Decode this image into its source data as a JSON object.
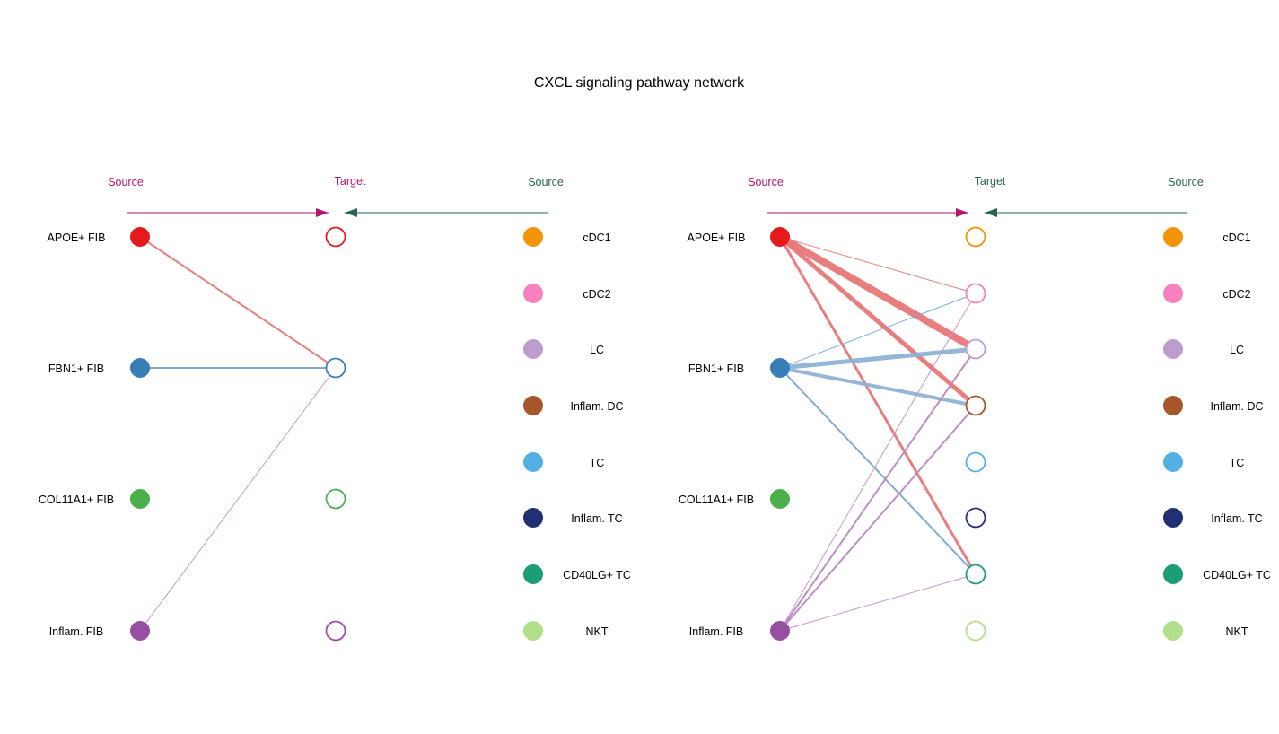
{
  "title": "CXCL signaling pathway network",
  "panels": [
    {
      "headers": [
        {
          "text": "Source",
          "color": "#b3166e"
        },
        {
          "text": "Target",
          "color": "#b3166e"
        },
        {
          "text": "Source",
          "color": "#2a6458"
        }
      ],
      "sources": [
        {
          "label": "APOE+ FIB",
          "color": "#e41a1c"
        },
        {
          "label": "FBN1+ FIB",
          "color": "#377eb8"
        },
        {
          "label": "COL11A1+ FIB",
          "color": "#4daf4a"
        },
        {
          "label": "Inflam. FIB",
          "color": "#984ea3"
        }
      ],
      "targets": [
        {
          "color": "#e41a1c"
        },
        {
          "color": "#377eb8"
        },
        {
          "color": "#4daf4a"
        },
        {
          "color": "#984ea3"
        }
      ],
      "right_nodes": [
        {
          "label": "cDC1",
          "color": "#f29403"
        },
        {
          "label": "cDC2",
          "color": "#f781bf"
        },
        {
          "label": "LC",
          "color": "#bc9dcc"
        },
        {
          "label": "Inflam. DC",
          "color": "#a65628"
        },
        {
          "label": "TC",
          "color": "#54b0e4"
        },
        {
          "label": "Inflam. TC",
          "color": "#222f75"
        },
        {
          "label": "CD40LG+ TC",
          "color": "#1b9e77"
        },
        {
          "label": "NKT",
          "color": "#b2df8a"
        }
      ],
      "edges": [
        {
          "from": 0,
          "to": 1,
          "weight": 2,
          "color": "#e87878"
        },
        {
          "from": 1,
          "to": 1,
          "weight": 2,
          "color": "#7aa7cf"
        },
        {
          "from": 3,
          "to": 1,
          "weight": 1,
          "color": "#c390c9"
        }
      ]
    },
    {
      "headers": [
        {
          "text": "Source",
          "color": "#b3166e"
        },
        {
          "text": "Target",
          "color": "#2a6458"
        },
        {
          "text": "Source",
          "color": "#2a6458"
        }
      ],
      "sources": [
        {
          "label": "APOE+ FIB",
          "color": "#e41a1c"
        },
        {
          "label": "FBN1+ FIB",
          "color": "#377eb8"
        },
        {
          "label": "COL11A1+ FIB",
          "color": "#4daf4a"
        },
        {
          "label": "Inflam. FIB",
          "color": "#984ea3"
        }
      ],
      "targets": [
        {
          "color": "#f29403"
        },
        {
          "color": "#f781bf"
        },
        {
          "color": "#bc9dcc"
        },
        {
          "color": "#a65628"
        },
        {
          "color": "#54b0e4"
        },
        {
          "color": "#222f75"
        },
        {
          "color": "#1b9e77"
        },
        {
          "color": "#b2df8a"
        }
      ],
      "right_nodes": [
        {
          "label": "cDC1",
          "color": "#f29403"
        },
        {
          "label": "cDC2",
          "color": "#f781bf"
        },
        {
          "label": "LC",
          "color": "#bc9dcc"
        },
        {
          "label": "Inflam. DC",
          "color": "#a65628"
        },
        {
          "label": "TC",
          "color": "#54b0e4"
        },
        {
          "label": "Inflam. TC",
          "color": "#222f75"
        },
        {
          "label": "CD40LG+ TC",
          "color": "#1b9e77"
        },
        {
          "label": "NKT",
          "color": "#b2df8a"
        }
      ],
      "edges": [
        {
          "from": 0,
          "to": 1,
          "weight": 1,
          "color": "#e87878"
        },
        {
          "from": 0,
          "to": 2,
          "weight": 8,
          "color": "#e87878"
        },
        {
          "from": 0,
          "to": 3,
          "weight": 5,
          "color": "#e87878"
        },
        {
          "from": 0,
          "to": 6,
          "weight": 3,
          "color": "#e87878"
        },
        {
          "from": 1,
          "to": 1,
          "weight": 1,
          "color": "#7aa7cf"
        },
        {
          "from": 1,
          "to": 2,
          "weight": 5,
          "color": "#8fb3d6"
        },
        {
          "from": 1,
          "to": 3,
          "weight": 4,
          "color": "#8fb3d6"
        },
        {
          "from": 1,
          "to": 6,
          "weight": 2,
          "color": "#7aa7cf"
        },
        {
          "from": 3,
          "to": 1,
          "weight": 1,
          "color": "#c390c9"
        },
        {
          "from": 3,
          "to": 2,
          "weight": 2,
          "color": "#b889c1"
        },
        {
          "from": 3,
          "to": 3,
          "weight": 2,
          "color": "#b889c1"
        },
        {
          "from": 3,
          "to": 6,
          "weight": 1,
          "color": "#c390c9"
        }
      ]
    }
  ]
}
